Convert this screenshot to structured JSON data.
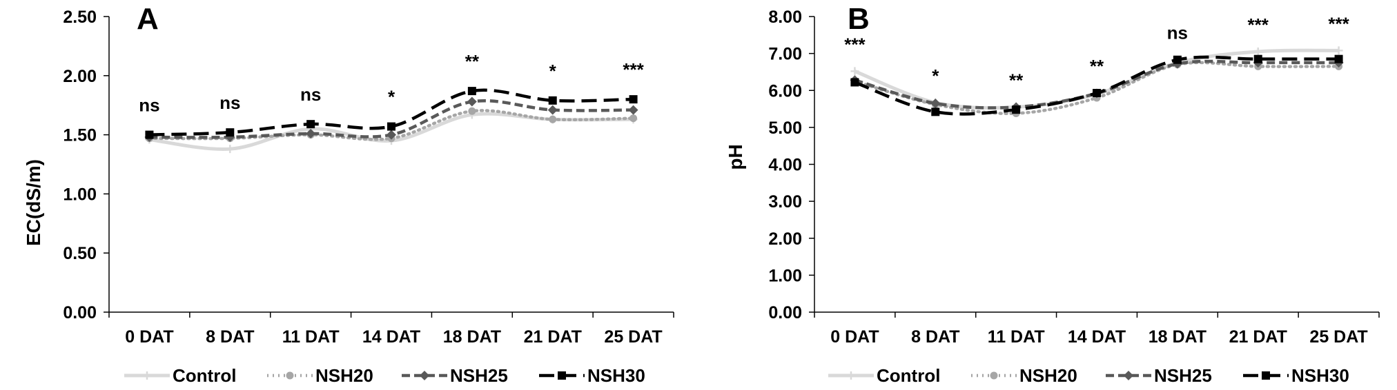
{
  "chart_data": [
    {
      "type": "line",
      "panel_label": "A",
      "title": "",
      "xlabel": "",
      "ylabel": "EC(dS/m)",
      "categories": [
        "0 DAT",
        "8 DAT",
        "11 DAT",
        "14 DAT",
        "18 DAT",
        "21 DAT",
        "25 DAT"
      ],
      "ylim": [
        0,
        2.5
      ],
      "yticks": [
        "0.00",
        "0.50",
        "1.00",
        "1.50",
        "2.00",
        "2.50"
      ],
      "grid": false,
      "legend": "bottom",
      "significance": [
        "ns",
        "ns",
        "ns",
        "*",
        "**",
        "*",
        "***"
      ],
      "series": [
        {
          "name": "Control",
          "color": "#d9d9d9",
          "style": "solid",
          "marker": "plus",
          "values": [
            1.46,
            1.38,
            1.55,
            1.45,
            1.67,
            1.63,
            1.63
          ]
        },
        {
          "name": "NSH20",
          "color": "#a6a6a6",
          "style": "dotted",
          "marker": "circle",
          "values": [
            1.47,
            1.47,
            1.5,
            1.47,
            1.7,
            1.63,
            1.64
          ]
        },
        {
          "name": "NSH25",
          "color": "#595959",
          "style": "dashed",
          "marker": "diamond",
          "values": [
            1.48,
            1.48,
            1.51,
            1.5,
            1.78,
            1.71,
            1.71
          ]
        },
        {
          "name": "NSH30",
          "color": "#000000",
          "style": "longdash",
          "marker": "square",
          "values": [
            1.5,
            1.52,
            1.59,
            1.57,
            1.87,
            1.79,
            1.8
          ]
        }
      ]
    },
    {
      "type": "line",
      "panel_label": "B",
      "title": "",
      "xlabel": "",
      "ylabel": "pH",
      "categories": [
        "0 DAT",
        "8 DAT",
        "11 DAT",
        "14 DAT",
        "18 DAT",
        "21 DAT",
        "25 DAT"
      ],
      "ylim": [
        0,
        8
      ],
      "yticks": [
        "0.00",
        "1.00",
        "2.00",
        "3.00",
        "4.00",
        "5.00",
        "6.00",
        "7.00",
        "8.00"
      ],
      "grid": false,
      "legend": "bottom",
      "significance": [
        "***",
        "*",
        "**",
        "**",
        "ns",
        "***",
        "***"
      ],
      "series": [
        {
          "name": "Control",
          "color": "#d9d9d9",
          "style": "solid",
          "marker": "plus",
          "values": [
            6.52,
            5.67,
            5.55,
            5.9,
            6.75,
            7.05,
            7.08
          ]
        },
        {
          "name": "NSH20",
          "color": "#a6a6a6",
          "style": "dotted",
          "marker": "circle",
          "values": [
            6.25,
            5.62,
            5.38,
            5.8,
            6.7,
            6.65,
            6.65
          ]
        },
        {
          "name": "NSH25",
          "color": "#595959",
          "style": "dashed",
          "marker": "diamond",
          "values": [
            6.28,
            5.65,
            5.55,
            5.92,
            6.72,
            6.75,
            6.75
          ]
        },
        {
          "name": "NSH30",
          "color": "#000000",
          "style": "longdash",
          "marker": "square",
          "values": [
            6.22,
            5.42,
            5.48,
            5.93,
            6.83,
            6.85,
            6.85
          ]
        }
      ]
    }
  ]
}
